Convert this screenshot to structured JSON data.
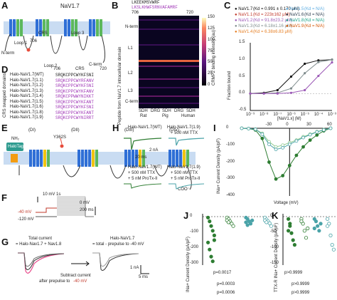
{
  "panels": {
    "A": {
      "letter": "A",
      "protein": "NaV1.7",
      "labels": {
        "n_term": "N-term",
        "c_term": "C-term",
        "crs": "CRS",
        "loop1": "Loop 1",
        "loop2": "Loop 2",
        "loop3": "Loop 3",
        "pos706": "706",
        "pos720": "720"
      }
    },
    "B": {
      "letter": "B",
      "sequence_top": "LKEEKMSVWRF",
      "sequence_bottom": "LKSLKHWFSRNVAFAMRF",
      "seq_start": "706",
      "seq_end": "720",
      "ylabel": "Peptide from NaV1.7 intracellular domain",
      "row_labels": [
        "N-term",
        "L1",
        "L2",
        "L3",
        "C-term"
      ],
      "colorbar_label": "CRMP2 binding intensity (au)",
      "colorbar_ticks": [
        "0",
        "25",
        "50",
        "75",
        "100",
        "125",
        "150"
      ],
      "col_labels": [
        "SDH",
        "DRG",
        "SDH",
        "DRG",
        "SDH"
      ],
      "groups": [
        "Rat",
        "Pig",
        "Human"
      ]
    },
    "C": {
      "letter": "C",
      "ylabel": "Fraction bound",
      "xlabel": "[NaV1.x] (M)",
      "legend": [
        {
          "name": "NaV1.7",
          "kd": "(Kd = 0.991 ± 0.170 μM)",
          "color": "#111111"
        },
        {
          "name": "NaV1.1",
          "kd": "(Kd = 223±162 μM)",
          "color": "#c0392b"
        },
        {
          "name": "NaV1.2",
          "kd": "(Kd = 91.8±23.2 μM)",
          "color": "#9b59b6"
        },
        {
          "name": "NaV1.3",
          "kd": "(Kd = 6.18±1.16 μM)",
          "color": "#7f8c8d"
        },
        {
          "name": "NaV1.4",
          "kd": "(Kd = 6.38±6.83 μM)",
          "color": "#e67e22"
        },
        {
          "name": "NaV1.5",
          "kd": "(Kd = N/A)",
          "color": "#5dade2"
        },
        {
          "name": "NaV1.6",
          "kd": "(Kd = N/A)",
          "color": "#2c3e50"
        },
        {
          "name": "NaV1.8",
          "kd": "(Kd = N/A)",
          "color": "#16a085"
        },
        {
          "name": "NaV1.9",
          "kd": "(Kd = N/A)",
          "color": "#d35400"
        }
      ],
      "yticks": [
        "-0.5",
        "0.0",
        "0.5",
        "1.0",
        "1.5"
      ],
      "xticks": [
        "10⁻⁹",
        "10⁻⁸",
        "10⁻⁷",
        "10⁻⁶",
        "10⁻⁵",
        "10⁻⁴",
        "10⁻³"
      ]
    },
    "D": {
      "letter": "D",
      "header_crs": "CRS",
      "pos706": "706",
      "pos720": "720",
      "side_label": "CRS swapped domains",
      "rows": [
        {
          "name": "Halo-NaV1.7",
          "sub": "(WT)",
          "seq": "SRQKCPPCWYKFSNI"
        },
        {
          "name": "Halo-NaV1.7",
          "sub": "(1.1)",
          "seq": "SRQKCPPCWYRFANV"
        },
        {
          "name": "Halo-NaV1.7",
          "sub": "(1.2)",
          "seq": "SRQKCPPCWYKFSNI"
        },
        {
          "name": "Halo-NaV1.7",
          "sub": "(1.3)",
          "seq": "SRQKCPPCWYKFANV"
        },
        {
          "name": "Halo-NaV1.7",
          "sub": "(1.4)",
          "seq": "SRQKCPPWWYNIKKT"
        },
        {
          "name": "Halo-NaV1.7",
          "sub": "(1.5)",
          "seq": "SRQKCPPCWYKFANT"
        },
        {
          "name": "Halo-NaV1.7",
          "sub": "(1.6)",
          "seq": "SRQKCPPCWYKFSNI"
        },
        {
          "name": "Halo-NaV1.7",
          "sub": "(1.8)",
          "seq": "SRQKCPPCWYKFANT"
        },
        {
          "name": "Halo-NaV1.7",
          "sub": "(1.9)",
          "seq": "SRQKCPPCWYNIRRT"
        }
      ]
    },
    "E": {
      "letter": "E",
      "domains": [
        "(DI)",
        "(DII)",
        "(DIII)",
        "(DIV)"
      ],
      "mutation": "Y362S",
      "tag": "HaloTag",
      "nh2": "NH₂",
      "cooh": "COO⁻"
    },
    "F": {
      "letter": "F",
      "step": "10 mV 1s",
      "v0": "0 mV",
      "vhold": "-40 mV",
      "vrest": "-120 mV",
      "tscale": "200 ms"
    },
    "G": {
      "letter": "G",
      "left_title1": "Total current",
      "left_title2": "= Halo-Nav1.7 + Nav1.8",
      "right_title1": "Halo-NaV1.7",
      "right_title2": "= total - prepulse to -40 mV",
      "subtract1": "Subtract current",
      "subtract2": "after prepulse to",
      "subtract3": "-40 mV",
      "scale_i": "1 nA",
      "scale_t": "5 ms"
    },
    "H": {
      "letter": "H",
      "l1": "Halo-NaV1.7",
      "l1sub": "(WT)",
      "l2": "Halo-NaV1.7",
      "l2sub": "(1.9)",
      "ttx": "+ 500 nM TTX",
      "protx": "+ 5 nM ProTx-II",
      "scale_i": "2 nA",
      "scale_t": "20 ms"
    },
    "I": {
      "letter": "I",
      "ylabel": "INa+ Current Density (pA/pF)",
      "xlabel": "Voltage (mV)",
      "xticks": [
        "-30",
        "0",
        "30",
        "60"
      ],
      "yticks": [
        "0",
        "-100",
        "-200",
        "-300",
        "-400"
      ]
    },
    "J": {
      "letter": "J",
      "ylabel": "INa+ Current Density (pA/pF)",
      "yticks": [
        "0",
        "-100",
        "-200",
        "-300"
      ],
      "pvals": [
        "p=0.0017",
        "p=0.0003",
        "p=0.0006"
      ]
    },
    "K": {
      "letter": "K",
      "ylabel": "TTX-R INa+ Current Density (pA/pF)",
      "yticks": [
        "0",
        "-50",
        "-100",
        "-150"
      ],
      "pvals": [
        "p>0.9999",
        "p>0.9999",
        "p>0.9999"
      ]
    }
  },
  "colors": {
    "membrane": "#c9dcf2",
    "helix_blue": "#2f6fd6",
    "helix_green": "#5cb85c",
    "helix_yellow": "#f1c40f",
    "dark_green": "#2e7d32",
    "teal": "#4aa3a8",
    "heat_hot": "#ff7043"
  },
  "chart_data": [
    {
      "type": "scatter",
      "panel": "C",
      "xlabel": "[NaV1.x] (M)",
      "ylabel": "Fraction bound",
      "xscale": "log",
      "xlim": [
        1e-09,
        0.001
      ],
      "ylim": [
        -0.5,
        1.5
      ],
      "series": [
        {
          "name": "NaV1.7",
          "x": [
            1e-09,
            1e-08,
            1e-07,
            1e-06,
            1e-05,
            0.0001,
            0.001
          ],
          "y": [
            0.0,
            0.02,
            0.1,
            0.5,
            0.88,
            0.98,
            1.0
          ]
        },
        {
          "name": "NaV1.3",
          "x": [
            1e-09,
            1e-08,
            1e-07,
            1e-06,
            1e-05,
            0.0001,
            0.001
          ],
          "y": [
            0.0,
            0.0,
            0.02,
            0.15,
            0.6,
            0.93,
            1.0
          ]
        },
        {
          "name": "NaV1.2",
          "x": [
            1e-09,
            1e-08,
            1e-07,
            1e-06,
            1e-05,
            0.0001,
            0.001
          ],
          "y": [
            0.0,
            0.0,
            0.0,
            0.02,
            0.1,
            0.52,
            0.92
          ]
        }
      ]
    },
    {
      "type": "line",
      "panel": "I",
      "xlabel": "Voltage (mV)",
      "ylabel": "INa+ Current Density (pA/pF)",
      "xlim": [
        -70,
        60
      ],
      "ylim": [
        -400,
        0
      ],
      "series": [
        {
          "name": "WT",
          "x": [
            -70,
            -60,
            -50,
            -40,
            -30,
            -20,
            -10,
            0,
            10,
            20,
            30,
            40,
            50,
            60
          ],
          "y": [
            0,
            -2,
            -10,
            -60,
            -200,
            -300,
            -280,
            -220,
            -160,
            -110,
            -70,
            -40,
            -15,
            0
          ]
        },
        {
          "name": "WT + TTX",
          "x": [
            -70,
            -60,
            -50,
            -40,
            -30,
            -20,
            -10,
            0,
            10,
            20,
            30,
            40,
            50,
            60
          ],
          "y": [
            0,
            -2,
            -5,
            -30,
            -80,
            -110,
            -100,
            -85,
            -70,
            -50,
            -35,
            -20,
            -8,
            0
          ]
        },
        {
          "name": "1.9 + TTX",
          "x": [
            -70,
            -60,
            -50,
            -40,
            -30,
            -20,
            -10,
            0,
            10,
            20,
            30,
            40,
            50,
            60
          ],
          "y": [
            0,
            -2,
            -6,
            -35,
            -95,
            -125,
            -115,
            -95,
            -75,
            -55,
            -38,
            -22,
            -10,
            0
          ]
        }
      ]
    }
  ]
}
